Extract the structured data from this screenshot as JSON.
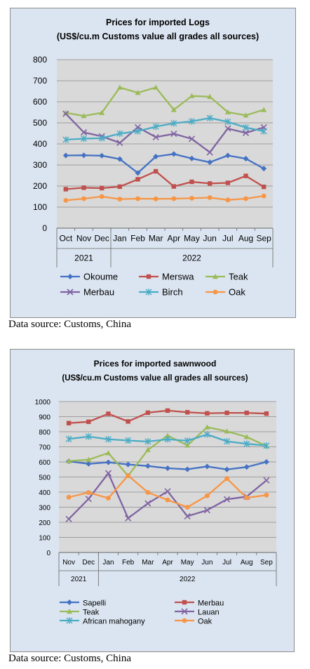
{
  "chart_data": [
    {
      "type": "line",
      "title": "Prices for imported Logs",
      "subtitle": "(US$/cu.m Customs value all grades all sources)",
      "categories": [
        "Oct",
        "Nov",
        "Dec",
        "Jan",
        "Feb",
        "Mar",
        "Apr",
        "May",
        "Jun",
        "Jul",
        "Aug",
        "Sep"
      ],
      "year_groups": [
        {
          "label": "2021",
          "span": 3
        },
        {
          "label": "2022",
          "span": 9
        }
      ],
      "ylim": [
        0,
        800
      ],
      "yticks": [
        "0",
        "100",
        "200",
        "300",
        "400",
        "500",
        "600",
        "700",
        "800"
      ],
      "grid": true,
      "legend_position": "bottom",
      "series": [
        {
          "name": "Okoume",
          "color": "#4472c4",
          "marker": "diamond",
          "values": [
            345,
            346,
            344,
            328,
            262,
            340,
            352,
            331,
            313,
            345,
            330,
            283
          ]
        },
        {
          "name": "Merswa",
          "color": "#c0504d",
          "marker": "square",
          "values": [
            185,
            192,
            190,
            197,
            232,
            270,
            198,
            220,
            212,
            215,
            248,
            196
          ]
        },
        {
          "name": "Teak",
          "color": "#9bbb59",
          "marker": "triangle",
          "values": [
            548,
            533,
            548,
            668,
            643,
            668,
            562,
            628,
            624,
            551,
            536,
            562
          ]
        },
        {
          "name": "Merbau",
          "color": "#8064a2",
          "marker": "x",
          "values": [
            543,
            455,
            436,
            405,
            479,
            432,
            448,
            424,
            360,
            473,
            452,
            479
          ]
        },
        {
          "name": "Birch",
          "color": "#4bacc6",
          "marker": "star",
          "values": [
            420,
            425,
            427,
            449,
            460,
            482,
            498,
            507,
            523,
            505,
            478,
            460
          ]
        },
        {
          "name": "Oak",
          "color": "#f79646",
          "marker": "circle",
          "values": [
            132,
            140,
            150,
            138,
            140,
            139,
            140,
            142,
            145,
            134,
            140,
            153
          ]
        }
      ]
    },
    {
      "type": "line",
      "title": "Prices for imported sawnwood",
      "subtitle": "(US$/cu.m Customs value all grades all sources)",
      "categories": [
        "Nov",
        "Dec",
        "Jan",
        "Feb",
        "Mar",
        "Apr",
        "May",
        "Jun",
        "Jul",
        "Aug",
        "Sep"
      ],
      "year_groups": [
        {
          "label": "2021",
          "span": 2
        },
        {
          "label": "2022",
          "span": 9
        }
      ],
      "ylim": [
        0,
        1000
      ],
      "yticks": [
        "0",
        "100",
        "200",
        "300",
        "400",
        "500",
        "600",
        "700",
        "800",
        "900",
        "1000"
      ],
      "grid": true,
      "legend_position": "bottom",
      "series": [
        {
          "name": "Sapelli",
          "color": "#4472c4",
          "marker": "diamond",
          "values": [
            604,
            587,
            597,
            583,
            573,
            558,
            551,
            570,
            550,
            566,
            600
          ]
        },
        {
          "name": "Merbau",
          "color": "#c0504d",
          "marker": "square",
          "values": [
            857,
            866,
            919,
            868,
            926,
            940,
            929,
            922,
            925,
            925,
            920
          ]
        },
        {
          "name": "Teak",
          "color": "#9bbb59",
          "marker": "triangle",
          "values": [
            606,
            615,
            659,
            508,
            680,
            775,
            710,
            830,
            803,
            766,
            705
          ]
        },
        {
          "name": "Lauan",
          "color": "#8064a2",
          "marker": "x",
          "values": [
            222,
            355,
            525,
            227,
            325,
            405,
            240,
            280,
            352,
            370,
            478
          ]
        },
        {
          "name": "African mahogany",
          "color": "#4bacc6",
          "marker": "star",
          "values": [
            752,
            768,
            750,
            742,
            735,
            750,
            740,
            782,
            736,
            720,
            708
          ]
        },
        {
          "name": "Oak",
          "color": "#f79646",
          "marker": "circle",
          "values": [
            366,
            397,
            360,
            510,
            398,
            348,
            300,
            376,
            490,
            362,
            380
          ]
        }
      ]
    }
  ],
  "sources": [
    "Data source: Customs, China",
    "Data source: Customs, China"
  ]
}
